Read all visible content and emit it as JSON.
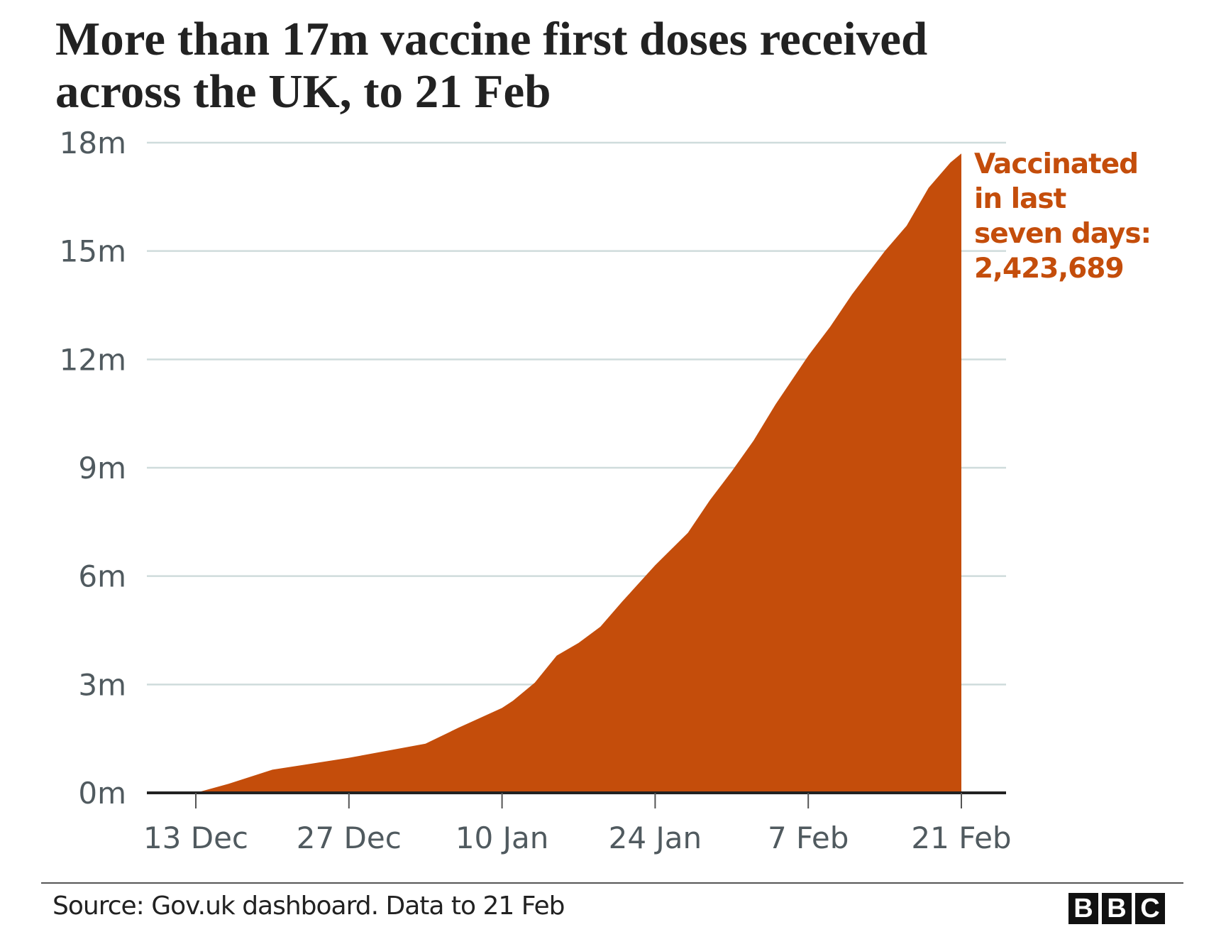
{
  "chart_data": {
    "type": "area",
    "title": "More than 17m vaccine first doses received across the UK, to 21 Feb",
    "title_lines": [
      "More than 17m vaccine first doses received",
      "across the UK, to 21 Feb"
    ],
    "xlabel": "",
    "ylabel": "",
    "ylim": [
      0,
      18000000
    ],
    "y_ticks": [
      {
        "value": 0,
        "label": "0m"
      },
      {
        "value": 3000000,
        "label": "3m"
      },
      {
        "value": 6000000,
        "label": "6m"
      },
      {
        "value": 9000000,
        "label": "9m"
      },
      {
        "value": 12000000,
        "label": "12m"
      },
      {
        "value": 15000000,
        "label": "15m"
      },
      {
        "value": 18000000,
        "label": "18m"
      }
    ],
    "x_ticks": [
      {
        "date": "2020-12-13",
        "label": "13 Dec"
      },
      {
        "date": "2020-12-27",
        "label": "27 Dec"
      },
      {
        "date": "2021-01-10",
        "label": "10 Jan"
      },
      {
        "date": "2021-01-24",
        "label": "24 Jan"
      },
      {
        "date": "2021-02-07",
        "label": "7 Feb"
      },
      {
        "date": "2021-02-21",
        "label": "21 Feb"
      }
    ],
    "xlim": [
      "2020-12-08",
      "2021-02-25"
    ],
    "grid": true,
    "color": "#c44d0b",
    "series": [
      {
        "x": [
          "2020-12-13",
          "2020-12-16",
          "2020-12-20",
          "2020-12-23",
          "2020-12-27",
          "2021-01-03",
          "2021-01-06",
          "2021-01-10",
          "2021-01-11",
          "2021-01-13",
          "2021-01-15",
          "2021-01-17",
          "2021-01-19",
          "2021-01-21",
          "2021-01-24",
          "2021-01-27",
          "2021-01-29",
          "2021-01-31",
          "2021-02-02",
          "2021-02-04",
          "2021-02-07",
          "2021-02-09",
          "2021-02-11",
          "2021-02-14",
          "2021-02-16",
          "2021-02-18",
          "2021-02-20",
          "2021-02-21"
        ],
        "values": [
          0,
          250000,
          640000,
          780000,
          970000,
          1360000,
          1800000,
          2350000,
          2550000,
          3050000,
          3800000,
          4150000,
          4600000,
          5300000,
          6300000,
          7200000,
          8100000,
          8900000,
          9750000,
          10750000,
          12100000,
          12900000,
          13800000,
          15000000,
          15700000,
          16750000,
          17450000,
          17700000
        ]
      }
    ]
  },
  "annotation": [
    "Vaccinated",
    "in last",
    "seven days:",
    "2,423,689"
  ],
  "footer": {
    "source": "Source: Gov.uk dashboard. Data to 21 Feb",
    "logo": [
      "B",
      "B",
      "C"
    ]
  }
}
